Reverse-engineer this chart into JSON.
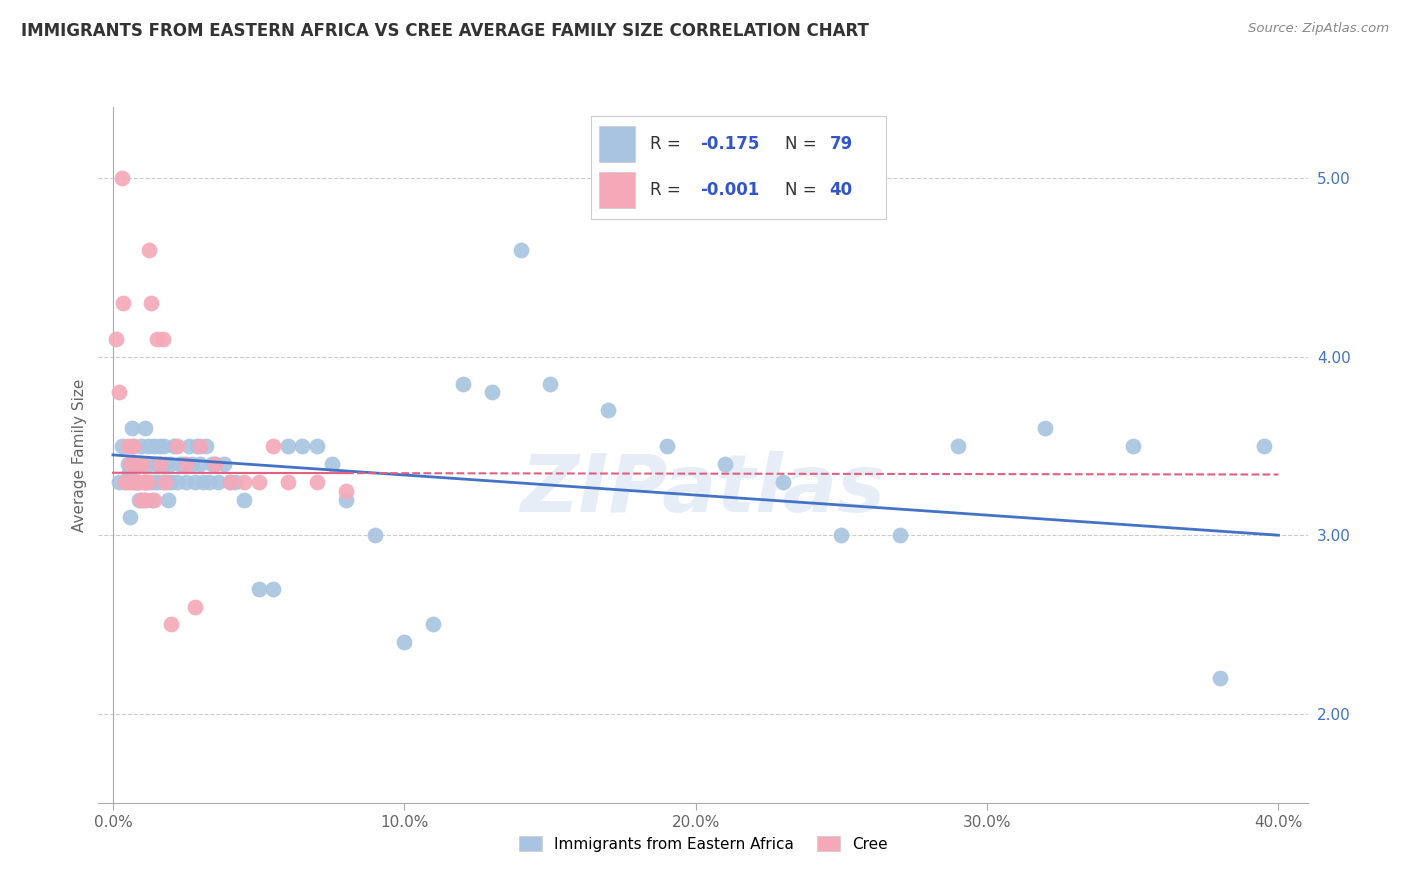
{
  "title": "IMMIGRANTS FROM EASTERN AFRICA VS CREE AVERAGE FAMILY SIZE CORRELATION CHART",
  "source": "Source: ZipAtlas.com",
  "ylabel": "Average Family Size",
  "blue_R": -0.175,
  "blue_N": 79,
  "pink_R": -0.001,
  "pink_N": 40,
  "blue_color": "#a8c4e0",
  "pink_color": "#f4a8b8",
  "blue_line_color": "#4472c4",
  "pink_line_color": "#e06080",
  "blue_points_x": [
    0.2,
    0.3,
    0.4,
    0.5,
    0.55,
    0.6,
    0.65,
    0.7,
    0.75,
    0.8,
    0.85,
    0.9,
    0.95,
    1.0,
    1.05,
    1.1,
    1.15,
    1.2,
    1.25,
    1.3,
    1.35,
    1.4,
    1.45,
    1.5,
    1.55,
    1.6,
    1.65,
    1.7,
    1.75,
    1.8,
    1.85,
    1.9,
    1.95,
    2.0,
    2.1,
    2.2,
    2.3,
    2.4,
    2.5,
    2.6,
    2.7,
    2.8,
    2.9,
    3.0,
    3.1,
    3.2,
    3.3,
    3.4,
    3.5,
    3.6,
    3.8,
    4.0,
    4.2,
    4.5,
    5.0,
    5.5,
    6.0,
    6.5,
    7.0,
    7.5,
    8.0,
    9.0,
    10.0,
    11.0,
    12.0,
    13.0,
    14.0,
    15.0,
    17.0,
    19.0,
    21.0,
    23.0,
    25.0,
    27.0,
    29.0,
    32.0,
    35.0,
    38.0,
    39.5
  ],
  "blue_points_y": [
    3.3,
    3.5,
    3.3,
    3.4,
    3.35,
    3.1,
    3.6,
    3.5,
    3.4,
    3.3,
    3.3,
    3.2,
    3.5,
    3.4,
    3.2,
    3.6,
    3.3,
    3.5,
    3.4,
    3.3,
    3.2,
    3.5,
    3.3,
    3.4,
    3.3,
    3.5,
    3.4,
    3.3,
    3.5,
    3.4,
    3.3,
    3.2,
    3.4,
    3.3,
    3.5,
    3.3,
    3.4,
    3.4,
    3.3,
    3.5,
    3.4,
    3.3,
    3.5,
    3.4,
    3.3,
    3.5,
    3.3,
    3.4,
    3.4,
    3.3,
    3.4,
    3.3,
    3.3,
    3.2,
    2.7,
    2.7,
    3.5,
    3.5,
    3.5,
    3.4,
    3.2,
    3.0,
    2.4,
    2.5,
    3.85,
    3.8,
    4.6,
    3.85,
    3.7,
    3.5,
    3.4,
    3.3,
    3.0,
    3.0,
    3.5,
    3.6,
    3.5,
    2.2,
    3.5
  ],
  "pink_points_x": [
    0.1,
    0.2,
    0.3,
    0.35,
    0.4,
    0.5,
    0.55,
    0.6,
    0.65,
    0.7,
    0.75,
    0.8,
    0.85,
    0.9,
    0.95,
    1.0,
    1.05,
    1.1,
    1.15,
    1.2,
    1.25,
    1.3,
    1.4,
    1.5,
    1.6,
    1.7,
    1.8,
    2.0,
    2.2,
    2.5,
    2.8,
    3.0,
    3.5,
    4.0,
    4.5,
    5.0,
    5.5,
    6.0,
    7.0,
    8.0
  ],
  "pink_points_y": [
    4.1,
    3.8,
    5.0,
    4.3,
    3.3,
    3.5,
    3.3,
    3.4,
    3.3,
    3.5,
    3.3,
    3.4,
    3.3,
    3.3,
    3.2,
    3.4,
    3.3,
    3.3,
    3.2,
    3.3,
    4.6,
    4.3,
    3.2,
    4.1,
    3.4,
    4.1,
    3.3,
    2.5,
    3.5,
    3.4,
    2.6,
    3.5,
    3.4,
    3.3,
    3.3,
    3.3,
    3.5,
    3.3,
    3.3,
    3.25
  ],
  "blue_line_x0": 0.0,
  "blue_line_y0": 3.45,
  "blue_line_x1": 40.0,
  "blue_line_y1": 3.0,
  "pink_line_x0": 0.0,
  "pink_line_y0": 3.35,
  "pink_line_x1": 40.0,
  "pink_line_y1": 3.34,
  "pink_solid_end": 8.0,
  "xlim": [
    -0.5,
    41.0
  ],
  "ylim": [
    1.5,
    5.4
  ],
  "xticks": [
    0.0,
    10.0,
    20.0,
    30.0,
    40.0
  ],
  "xtick_labels": [
    "0.0%",
    "10.0%",
    "20.0%",
    "30.0%",
    "40.0%"
  ],
  "yticks_right": [
    2.0,
    3.0,
    4.0,
    5.0
  ],
  "grid_color": "#cccccc",
  "background_color": "#ffffff",
  "legend_label_blue": "Immigrants from Eastern Africa",
  "legend_label_pink": "Cree"
}
